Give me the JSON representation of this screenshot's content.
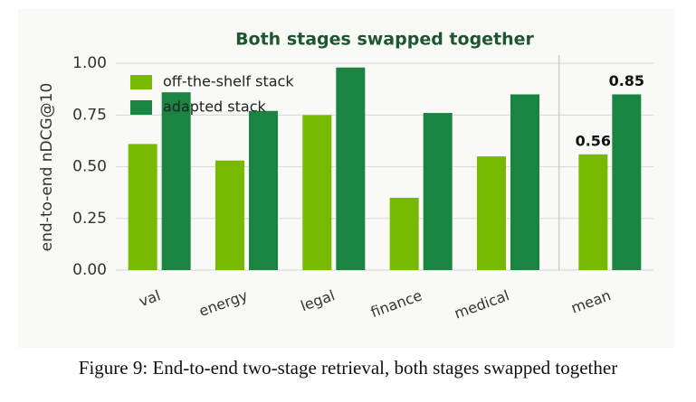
{
  "chart_data": {
    "type": "bar",
    "title": "Both stages swapped together",
    "ylabel": "end-to-end nDCG@10",
    "categories": [
      "val",
      "energy",
      "legal",
      "finance",
      "medical",
      "mean"
    ],
    "series": [
      {
        "name": "off-the-shelf stack",
        "color": "#76b900",
        "values": [
          0.61,
          0.53,
          0.75,
          0.35,
          0.55,
          0.56
        ],
        "value_labels": [
          null,
          null,
          null,
          null,
          null,
          "0.56"
        ]
      },
      {
        "name": "adapted stack",
        "color": "#1a8443",
        "values": [
          0.86,
          0.77,
          0.98,
          0.76,
          0.85,
          0.85
        ],
        "value_labels": [
          null,
          null,
          null,
          null,
          null,
          "0.85"
        ]
      }
    ],
    "ylim": [
      0,
      1.04
    ],
    "yticks": [
      {
        "value": 0,
        "label": "0.00"
      },
      {
        "value": 0.25,
        "label": "0.25"
      },
      {
        "value": 0.5,
        "label": "0.50"
      },
      {
        "value": 0.75,
        "label": "0.75"
      },
      {
        "value": 1,
        "label": "1.00"
      }
    ],
    "grid": true,
    "legend": "upper-left"
  },
  "caption": "Figure 9: End-to-end two-stage retrieval, both stages swapped together"
}
